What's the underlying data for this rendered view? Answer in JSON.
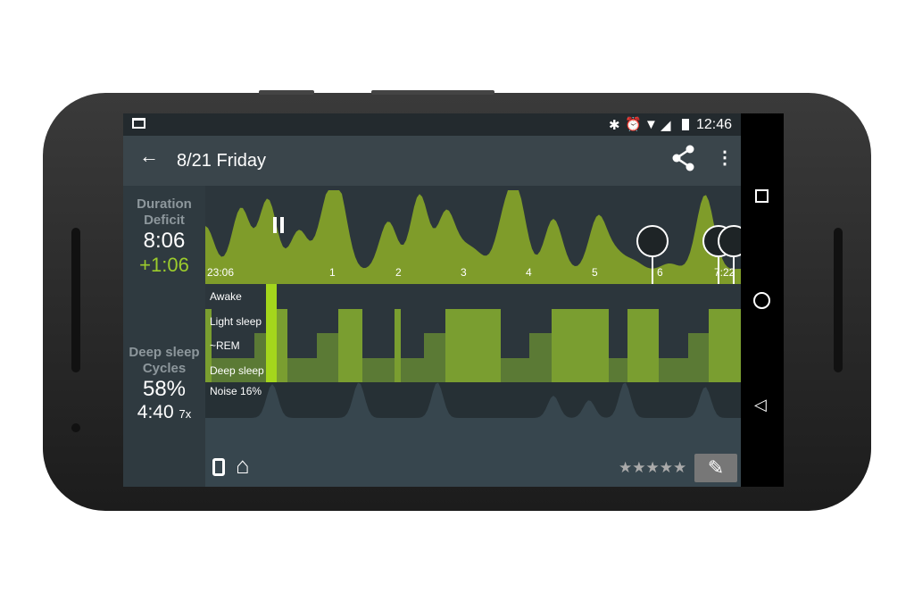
{
  "status_bar": {
    "time": "12:46",
    "icons": [
      "folder-icon",
      "bluetooth-icon",
      "alarm-icon",
      "wifi-icon",
      "signal-icon",
      "battery-icon"
    ]
  },
  "app_bar": {
    "title": "8/21 Friday",
    "icons": [
      "back-arrow-icon",
      "share-icon",
      "more-vert-icon"
    ]
  },
  "summary": {
    "duration_label": "Duration",
    "deficit_label": "Deficit",
    "duration": "8:06",
    "deficit": "+1:06",
    "deep_label": "Deep sleep",
    "cycles_label": "Cycles",
    "deep_percent": "58%",
    "cycles_time": "4:40",
    "cycles_count": "7x"
  },
  "actigraph": {
    "x_ticks": [
      "23:06",
      "1",
      "2",
      "3",
      "4",
      "5",
      "6",
      "7:22"
    ],
    "markers": [
      "pause-icon",
      "sunrise-alarm-icon",
      "snooze-icon",
      "snooze-icon"
    ]
  },
  "hypnogram": {
    "levels": [
      "Awake",
      "Light sleep",
      "~REM",
      "Deep sleep"
    ],
    "segments": [
      [
        "light",
        0
      ],
      [
        "deep",
        1
      ],
      [
        "rem",
        2
      ],
      [
        "awake",
        3
      ],
      [
        "light",
        4
      ],
      [
        "deep",
        5
      ],
      [
        "rem",
        6
      ],
      [
        "light",
        7
      ],
      [
        "deep",
        8
      ],
      [
        "light",
        9
      ],
      [
        "deep",
        10
      ],
      [
        "rem",
        11
      ],
      [
        "light",
        12
      ],
      [
        "deep",
        13
      ],
      [
        "rem",
        14
      ],
      [
        "light",
        15
      ],
      [
        "deep",
        16
      ],
      [
        "light",
        17
      ],
      [
        "deep",
        18
      ],
      [
        "rem",
        19
      ],
      [
        "light",
        20
      ]
    ],
    "colors": {
      "light": "#7a9e30",
      "rem": "#5b7a35",
      "deep": "#5b7a35",
      "awake": "#a4d61c"
    }
  },
  "noise": {
    "label": "Noise 16%"
  },
  "footer": {
    "rating": "★★★★★",
    "icons": [
      "watch-icon",
      "home-icon",
      "edit-pencil-icon"
    ]
  },
  "colors": {
    "accent": "#8db52a",
    "deficit": "#9ccc2c"
  }
}
